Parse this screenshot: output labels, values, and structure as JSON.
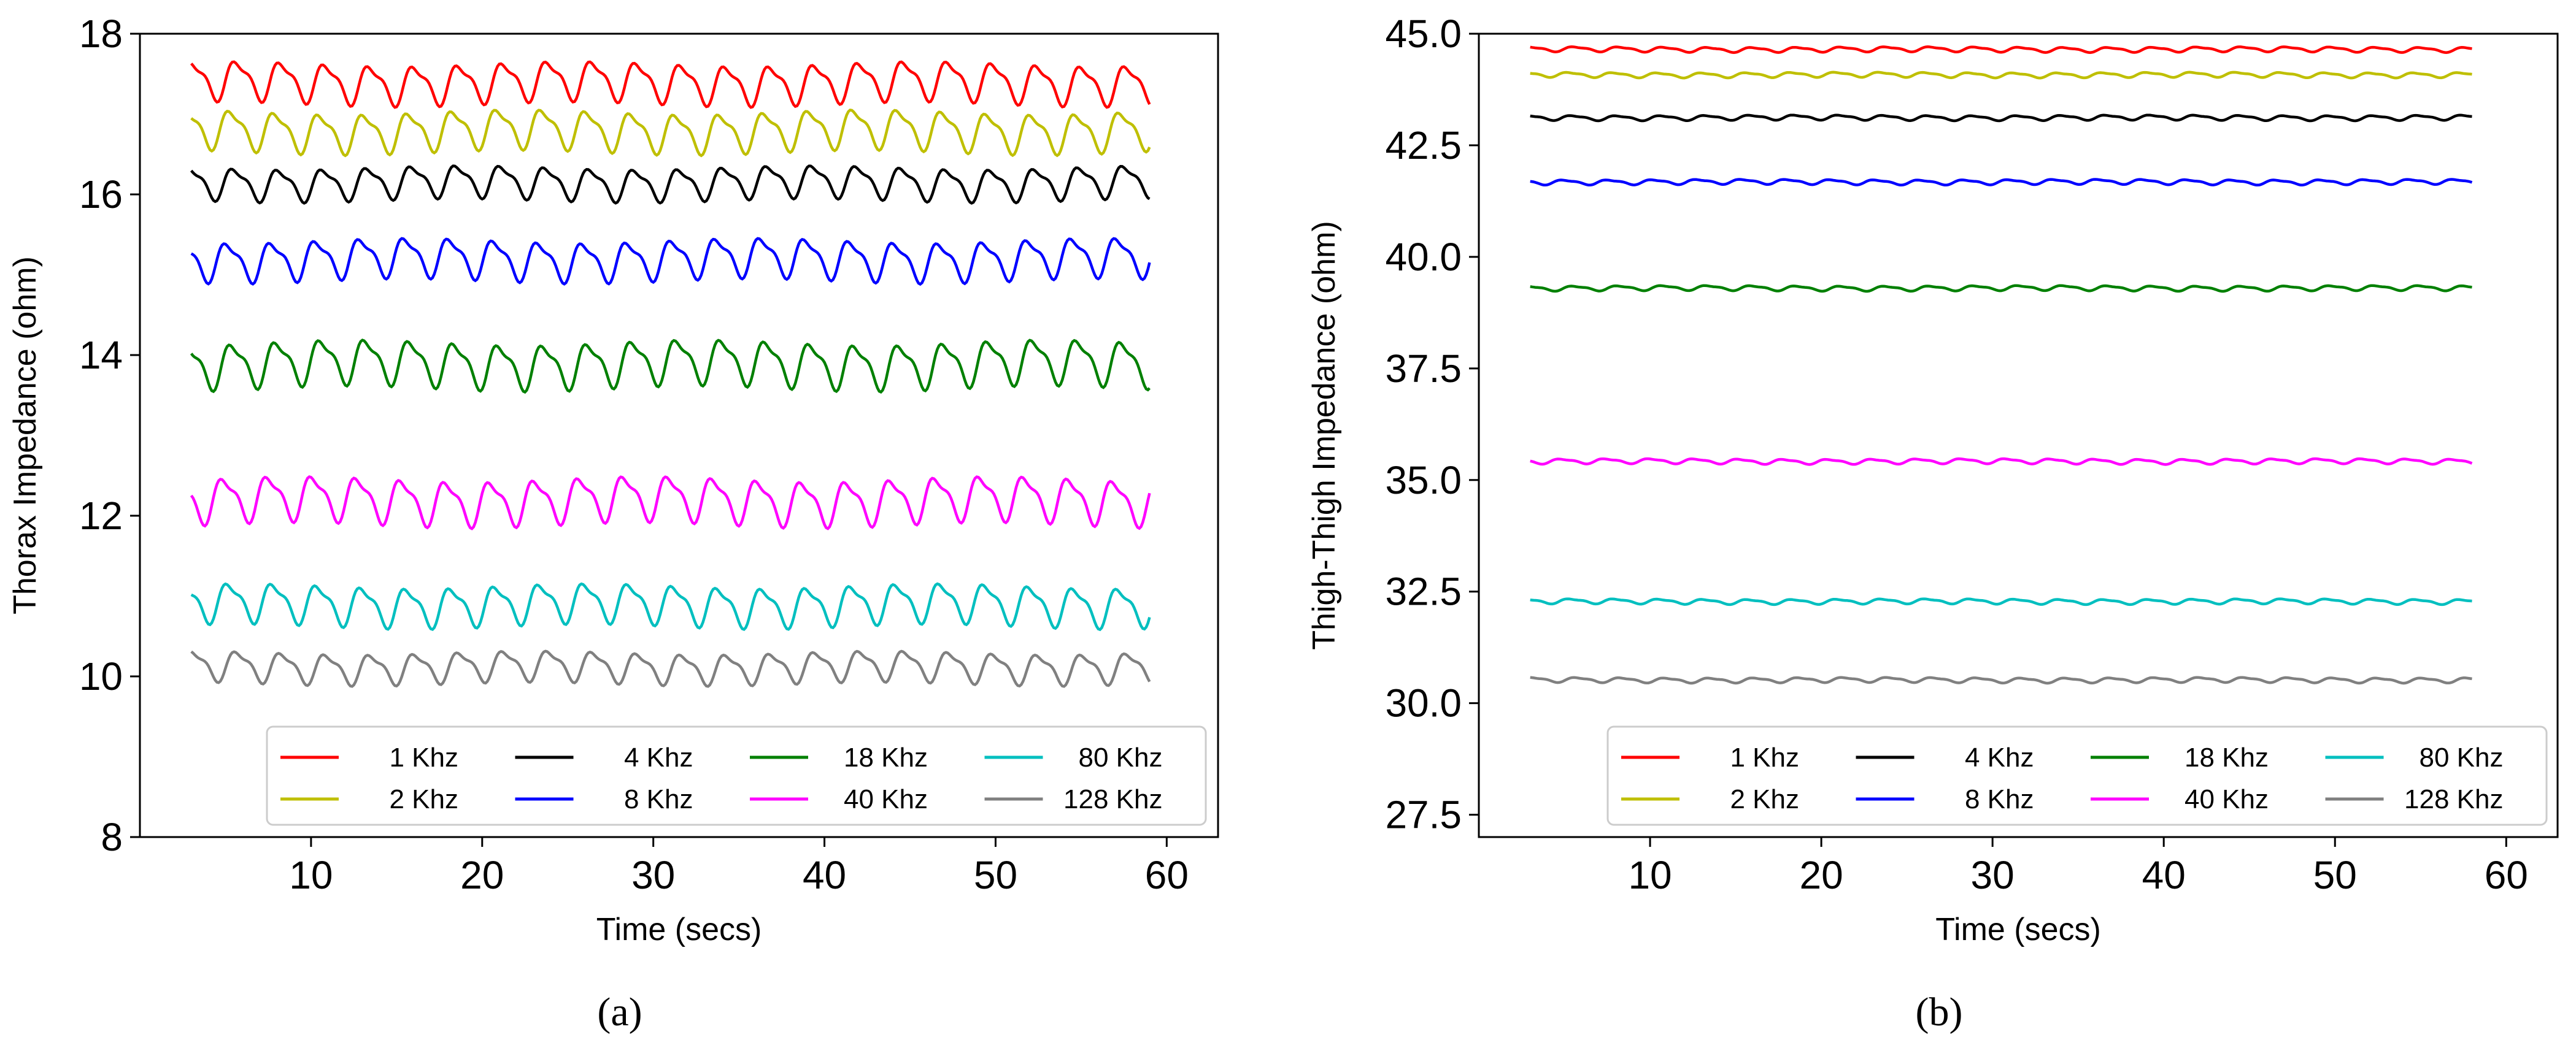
{
  "chart_data": [
    {
      "type": "line",
      "panel_label": "(a)",
      "xlabel": "Time (secs)",
      "ylabel": "Thorax Impedance (ohm)",
      "xlim": [
        0,
        63
      ],
      "ylim": [
        8,
        18
      ],
      "xticks": [
        "10",
        "20",
        "30",
        "40",
        "50",
        "60"
      ],
      "yticks": [
        "8",
        "10",
        "12",
        "14",
        "16",
        "18"
      ],
      "x_start": 3,
      "x_end": 59,
      "period": 2.6,
      "legend_position": "lower right",
      "series": [
        {
          "name": "1 Khz",
          "color": "#ff0000",
          "baseline": 17.4,
          "amplitude": 0.22,
          "phase": 0.3
        },
        {
          "name": "2 Khz",
          "color": "#bfbf00",
          "baseline": 16.8,
          "amplitude": 0.22,
          "phase": 1.1
        },
        {
          "name": "4 Khz",
          "color": "#000000",
          "baseline": 16.15,
          "amplitude": 0.18,
          "phase": 0.6
        },
        {
          "name": "8 Khz",
          "color": "#0000ff",
          "baseline": 15.2,
          "amplitude": 0.22,
          "phase": 1.6
        },
        {
          "name": "18 Khz",
          "color": "#008000",
          "baseline": 13.9,
          "amplitude": 0.25,
          "phase": 0.9
        },
        {
          "name": "40 Khz",
          "color": "#ff00ff",
          "baseline": 12.2,
          "amplitude": 0.25,
          "phase": 2.1
        },
        {
          "name": "80 Khz",
          "color": "#00bfbf",
          "baseline": 10.9,
          "amplitude": 0.22,
          "phase": 1.4
        },
        {
          "name": "128 Khz",
          "color": "#808080",
          "baseline": 10.12,
          "amplitude": 0.17,
          "phase": 0.2
        }
      ]
    },
    {
      "type": "line",
      "panel_label": "(b)",
      "xlabel": "Time (secs)",
      "ylabel": "Thigh-Thigh Impedance (ohm)",
      "xlim": [
        0,
        63
      ],
      "ylim": [
        27,
        45
      ],
      "xticks": [
        "10",
        "20",
        "30",
        "40",
        "50",
        "60"
      ],
      "yticks": [
        "27.5",
        "30.0",
        "32.5",
        "35.0",
        "37.5",
        "40.0",
        "42.5",
        "45.0"
      ],
      "x_start": 3,
      "x_end": 58,
      "period": 2.6,
      "legend_position": "lower right",
      "series": [
        {
          "name": "1 Khz",
          "color": "#ff0000",
          "baseline": 44.65,
          "amplitude": 0.05,
          "phase": 0.4
        },
        {
          "name": "2 Khz",
          "color": "#bfbf00",
          "baseline": 44.08,
          "amplitude": 0.05,
          "phase": 1.2
        },
        {
          "name": "4 Khz",
          "color": "#000000",
          "baseline": 43.12,
          "amplitude": 0.05,
          "phase": 0.7
        },
        {
          "name": "8 Khz",
          "color": "#0000ff",
          "baseline": 41.68,
          "amplitude": 0.05,
          "phase": 1.9
        },
        {
          "name": "18 Khz",
          "color": "#008000",
          "baseline": 39.3,
          "amplitude": 0.05,
          "phase": 0.5
        },
        {
          "name": "40 Khz",
          "color": "#ff00ff",
          "baseline": 35.42,
          "amplitude": 0.05,
          "phase": 2.3
        },
        {
          "name": "80 Khz",
          "color": "#00bfbf",
          "baseline": 32.28,
          "amplitude": 0.05,
          "phase": 1.0
        },
        {
          "name": "128 Khz",
          "color": "#808080",
          "baseline": 30.52,
          "amplitude": 0.05,
          "phase": 0.1
        }
      ]
    }
  ]
}
